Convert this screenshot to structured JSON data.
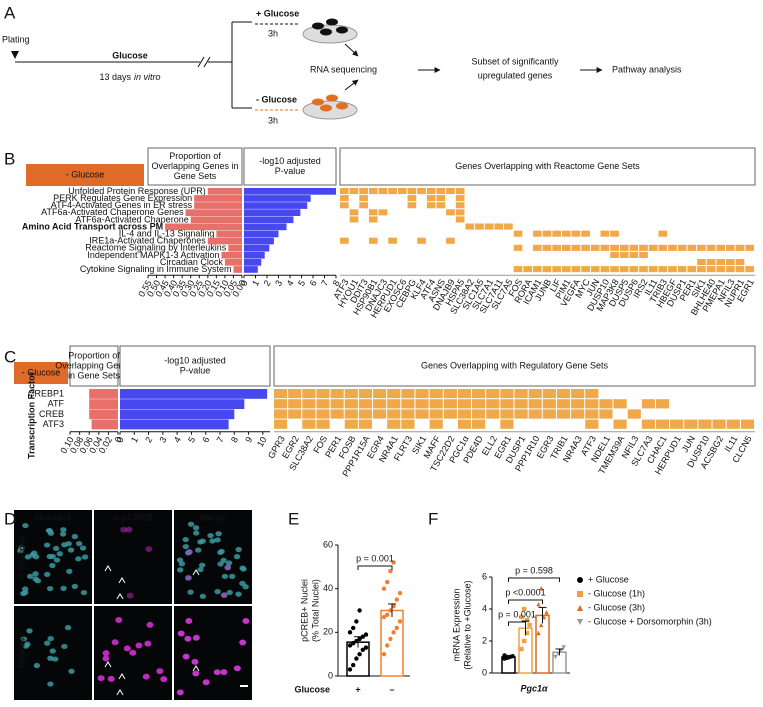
{
  "figure": {
    "panel_labels": {
      "a": "A",
      "b": "B",
      "c": "C",
      "d": "D",
      "e": "E",
      "f": "F"
    },
    "panel_a": {
      "plating": "Plating",
      "glucose": "Glucose",
      "duration": "13 days",
      "in_vitro": "in vitro",
      "plus_glucose": "+ Glucose",
      "plus_time": "3h",
      "minus_glucose": "- Glucose",
      "minus_time": "3h",
      "rna_seq": "RNA sequencing",
      "subset": [
        "Subset of significantly",
        "upregulated genes"
      ],
      "pathway": "Pathway analysis"
    },
    "panel_b": {
      "condition": "- Glucose",
      "headers": {
        "proportion": [
          "Proportion of",
          "Overlapping Genes in",
          "Gene Sets"
        ],
        "pvalue": [
          "-log10 adjusted",
          "P-value"
        ],
        "genes": "Genes Overlapping with Reactome Gene Sets"
      },
      "proportion_color": "#e8706a",
      "pvalue_color": "#4848f0",
      "cell_color": "#f0a848",
      "highlight_color": "#e02020",
      "proportion_lim": [
        0,
        0.55
      ],
      "proportion_ticks": [
        0.55,
        {
          "value": 0.5,
          "label": "0.50"
        },
        0.45,
        {
          "value": 0.4,
          "label": "0.40"
        },
        0.35,
        {
          "value": 0.3,
          "label": "0.30"
        },
        0.25,
        {
          "value": 0.2,
          "label": "0.20"
        },
        0.15,
        {
          "value": 0.1,
          "label": "0.10"
        },
        0.05,
        {
          "value": 0,
          "label": "0.00"
        }
      ],
      "pvalue_lim": [
        0,
        8
      ],
      "pvalue_ticks": [
        0,
        1,
        2,
        3,
        4,
        5,
        6,
        7,
        8
      ],
      "rows": [
        {
          "name": "Unfolded Protein Response (UPR)",
          "proportion": 0.2,
          "neg_log10_p": 8.0,
          "members": [
            0,
            1,
            2,
            3,
            4,
            5,
            6,
            7,
            8,
            9,
            10,
            11,
            12
          ]
        },
        {
          "name": "PERK Regulates Gene Expression",
          "proportion": 0.28,
          "neg_log10_p": 5.8,
          "members": [
            0,
            2,
            7,
            9,
            10,
            12
          ]
        },
        {
          "name": "ATF4-Activated Genes in ER stress",
          "proportion": 0.28,
          "neg_log10_p": 5.5,
          "members": [
            0,
            2,
            7,
            9,
            10,
            12
          ]
        },
        {
          "name": "ATF6a-Activated Chaperone Genes",
          "proportion": 0.33,
          "neg_log10_p": 4.9,
          "members": [
            1,
            3,
            4,
            11,
            12
          ]
        },
        {
          "name": "ATF6a-Activated Chaperone",
          "proportion": 0.3,
          "neg_log10_p": 4.3,
          "members": [
            1,
            3,
            12
          ]
        },
        {
          "name": "Amino Acid Transport across PM",
          "proportion": 0.45,
          "neg_log10_p": 3.7,
          "members": [
            13,
            14,
            15,
            16,
            17
          ],
          "highlighted": true
        },
        {
          "name": "IL-4 and IL-13 Signaling",
          "proportion": 0.15,
          "neg_log10_p": 3.0,
          "members": [
            18,
            20,
            21,
            22,
            23,
            24,
            25,
            27,
            28,
            33
          ]
        },
        {
          "name": "IRE1a-Activated Chaperones",
          "proportion": 0.2,
          "neg_log10_p": 2.6,
          "members": [
            0,
            3,
            5,
            8,
            11
          ]
        },
        {
          "name": "Reactome Signaling by Interleukins",
          "proportion": 0.08,
          "neg_log10_p": 2.2,
          "members": [
            18,
            20,
            21,
            22,
            23,
            24,
            25,
            26,
            27,
            28,
            29,
            30,
            31,
            32,
            33,
            34,
            35,
            36,
            37,
            38,
            39,
            40,
            41,
            42
          ]
        },
        {
          "name": "Independent MAPK1-3 Activation",
          "proportion": 0.12,
          "neg_log10_p": 1.8,
          "members": [
            28,
            29,
            30,
            31
          ]
        },
        {
          "name": "Circadian Clock",
          "proportion": 0.1,
          "neg_log10_p": 1.5,
          "members": [
            37,
            38,
            39,
            40,
            41
          ]
        },
        {
          "name": "Cytokine Signaling in Immune System",
          "proportion": 0.05,
          "neg_log10_p": 1.2,
          "members": [
            18,
            19,
            20,
            21,
            22,
            23,
            24,
            25,
            26,
            27,
            28,
            29,
            30,
            31,
            32,
            33,
            34,
            35,
            36,
            37,
            38,
            39,
            40,
            41,
            42
          ]
        }
      ],
      "genes": [
        "ATF3",
        "HYOU1",
        "DDIT3",
        "HSP90B1",
        "DNAJC3",
        "HERPUD1",
        "EXOSC6",
        "CEBPG",
        "KLF4",
        "ATF4",
        "ASNS",
        "DNAJB9",
        "HSPA5",
        "SLC38A2",
        "SLC1A5",
        "SLC7A1",
        "SLC7A11",
        "SLC7A5",
        "FOS",
        "RORA",
        "ICAM1",
        "JUNB",
        "LIF",
        "PIM1",
        "VEGFA",
        "MYC",
        "JUN",
        "DUSP10",
        "MAP3K8",
        "DUSP5",
        "DUSP6",
        "IRS2",
        "IL11",
        "TRIB3",
        "HBEGF",
        "DUSP1",
        "PER1",
        "SIK1",
        "BHLHE40",
        "PMEPA1",
        "NFIL3",
        "NUPR1",
        "EGR1"
      ]
    },
    "panel_c": {
      "condition": "- Glucose",
      "row_title": "Transcription Factor",
      "headers": {
        "proportion": [
          "Proportion of",
          "Overlapping Genes",
          "in Gene Sets"
        ],
        "pvalue": [
          "-log10 adjusted",
          "P-value"
        ],
        "genes": "Genes Overlapping with Regulatory Gene Sets"
      },
      "proportion_color": "#e8706a",
      "pvalue_color": "#4848f0",
      "cell_color": "#f0a848",
      "highlight_color": "#e02020",
      "proportion_lim": [
        0,
        0.1
      ],
      "proportion_ticks": [
        {
          "value": 0.1,
          "label": "0.10"
        },
        0.08,
        0.06,
        0.04,
        0.02,
        0
      ],
      "pvalue_lim": [
        0,
        10.5
      ],
      "pvalue_ticks": [
        0,
        1,
        2,
        3,
        4,
        5,
        6,
        7,
        8,
        9,
        10
      ],
      "rows": [
        {
          "name": "CREBP1",
          "proportion": 0.06,
          "neg_log10_p": 10.3,
          "members": [
            0,
            1,
            2,
            3,
            4,
            5,
            6,
            7,
            8,
            9,
            10,
            11,
            12,
            13,
            14,
            15,
            16,
            17,
            18,
            19,
            20,
            21,
            22
          ]
        },
        {
          "name": "ATF",
          "proportion": 0.06,
          "neg_log10_p": 8.7,
          "members": [
            0,
            1,
            2,
            3,
            4,
            5,
            6,
            7,
            8,
            9,
            10,
            11,
            12,
            13,
            14,
            15,
            16,
            17,
            18,
            19,
            20,
            21,
            22,
            23,
            24,
            26,
            27
          ]
        },
        {
          "name": "CREB",
          "proportion": 0.06,
          "neg_log10_p": 8.0,
          "members": [
            0,
            1,
            2,
            3,
            4,
            5,
            6,
            7,
            8,
            9,
            10,
            11,
            12,
            13,
            14,
            15,
            16,
            17,
            18,
            19,
            20,
            21,
            22,
            23,
            25
          ]
        },
        {
          "name": "ATF3",
          "proportion": 0.055,
          "neg_log10_p": 7.6,
          "members": [
            0,
            2,
            3,
            5,
            6,
            8,
            9,
            11,
            13,
            14,
            16,
            22,
            24,
            26,
            27,
            28,
            29,
            30,
            31,
            32,
            33
          ]
        }
      ],
      "genes": [
        "GPR3",
        "EGR2",
        "SLC38A2",
        "FOS",
        "PER1",
        "FOSB",
        "PPP1R15A",
        "EGR4",
        "NR4A1",
        "FLRT3",
        "SIK1",
        "MAFF",
        "TSC22D2",
        "PGC1α",
        "PDE4D",
        "ELL2",
        "EGR1",
        "DUSP1",
        "PPP1R10",
        "EGR3",
        "TRIB1",
        "NR4A3",
        "ATF3",
        "NDEL1",
        "TMEM39A",
        "NFIL3",
        "SLC7A3",
        "CHAC1",
        "HERPUD1",
        "JUN",
        "DUSP10",
        "ACSBG2",
        "IL11",
        "CLCN5"
      ],
      "highlighted_gene": 13
    },
    "panel_d": {
      "channels": [
        "Hoechst",
        "α-pCREB",
        "Merge"
      ],
      "channel_colors": [
        "#40c8d0",
        "#e040e0",
        "#ffffff"
      ],
      "conditions": [
        "+ Glucose",
        "- Glucose"
      ]
    }
  },
  "chart_data": [
    {
      "type": "bar",
      "ylabel": [
        "pCREB+ Nuclei",
        "(% Total Nuclei)"
      ],
      "xlabel": "Glucose",
      "categories": [
        "+",
        "–"
      ],
      "values": [
        15.5,
        30
      ],
      "errors": [
        2.5,
        3
      ],
      "colors": [
        "#000000",
        "#f08030"
      ],
      "points": [
        [
          3,
          5,
          8,
          10,
          12,
          13,
          14,
          15,
          16,
          17,
          18,
          19,
          20,
          22,
          25,
          30
        ],
        [
          10,
          14,
          17,
          20,
          22,
          25,
          27,
          28,
          30,
          32,
          35,
          38,
          40,
          43,
          48,
          52
        ]
      ],
      "ylim": [
        0,
        60
      ],
      "yticks": [
        0,
        20,
        40,
        60
      ],
      "annotations": [
        {
          "text": "p = 0.001",
          "between": [
            0,
            1
          ]
        }
      ]
    },
    {
      "type": "bar",
      "ylabel": [
        "mRNA Expression",
        "(Relative to +Glucose)"
      ],
      "categories": [
        "Pgc1α"
      ],
      "series": [
        {
          "name": "+ Glucose",
          "color": "#000000",
          "marker": "circle",
          "values": [
            1.0
          ],
          "errors": [
            0.08
          ],
          "points": [
            0.9,
            1.0,
            1.0,
            1.05,
            1.1,
            0.95
          ]
        },
        {
          "name": "- Glucose (1h)",
          "color": "#f0a040",
          "marker": "square",
          "values": [
            2.8
          ],
          "errors": [
            0.45
          ],
          "points": [
            1.5,
            2.0,
            2.5,
            3.0,
            3.5,
            4.0,
            3.3
          ]
        },
        {
          "name": "- Glucose (3h)",
          "color": "#e06a20",
          "marker": "triangle",
          "values": [
            3.6
          ],
          "errors": [
            0.5
          ],
          "points": [
            2.5,
            3.0,
            3.5,
            3.8,
            4.3,
            5.3
          ]
        },
        {
          "name": "- Glucose + Dorsomorphin (3h)",
          "color": "#999999",
          "marker": "triangle-down",
          "values": [
            1.3
          ],
          "errors": [
            0.2
          ],
          "points": [
            1.0,
            1.2,
            1.4,
            1.6
          ]
        }
      ],
      "ylim": [
        0,
        6
      ],
      "yticks": [
        0,
        2,
        4,
        6
      ],
      "annotations": [
        {
          "text": "p = 0.001",
          "between": [
            0,
            1
          ]
        },
        {
          "text": "p <0.0001",
          "between": [
            0,
            2
          ]
        },
        {
          "text": "p = 0.598",
          "between": [
            0,
            3
          ]
        }
      ]
    }
  ]
}
